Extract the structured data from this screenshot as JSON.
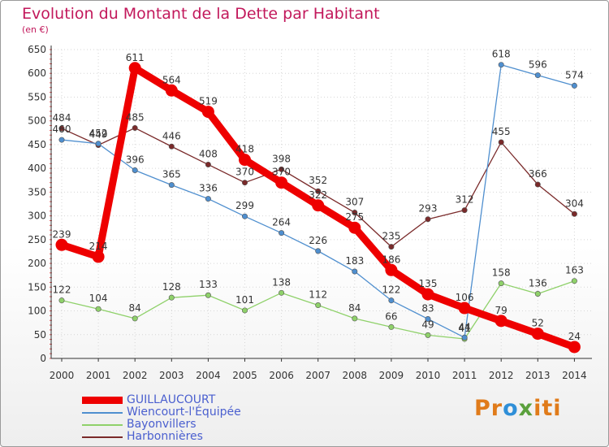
{
  "chart_data": {
    "type": "line",
    "title": "Evolution du Montant de la Dette par Habitant",
    "subtitle": "(en €)",
    "x": [
      "2000",
      "2001",
      "2002",
      "2003",
      "2004",
      "2005",
      "2006",
      "2007",
      "2008",
      "2009",
      "2010",
      "2011",
      "2012",
      "2013",
      "2014"
    ],
    "ylim": [
      0,
      650
    ],
    "yticks": [
      0,
      50,
      100,
      150,
      200,
      250,
      300,
      350,
      400,
      450,
      500,
      550,
      600,
      650
    ],
    "grid": true,
    "legend_position": "bottom-left",
    "series": [
      {
        "name": "GUILLAUCOURT",
        "color": "#ee0000",
        "values": [
          239,
          214,
          611,
          564,
          519,
          418,
          370,
          322,
          275,
          186,
          135,
          106,
          79,
          52,
          24
        ],
        "labels": [
          "239",
          "214",
          "611",
          "564",
          "519",
          "418",
          "370",
          "322",
          "275",
          "186",
          "135",
          "106",
          "79",
          "52",
          "24"
        ]
      },
      {
        "name": "Wiencourt-l'Équipée",
        "color": "#4f8fcf",
        "values": [
          460,
          452,
          396,
          365,
          336,
          299,
          264,
          226,
          183,
          122,
          83,
          44,
          618,
          596,
          574
        ],
        "labels": [
          "460",
          "452",
          "396",
          "365",
          "336",
          "299",
          "264",
          "226",
          "183",
          "122",
          "83",
          "44",
          "618",
          "596",
          "574"
        ]
      },
      {
        "name": "Bayonvillers",
        "color": "#8fd16a",
        "values": [
          122,
          104,
          84,
          128,
          133,
          101,
          138,
          112,
          84,
          66,
          49,
          41,
          158,
          136,
          163
        ],
        "labels": [
          "122",
          "104",
          "84",
          "128",
          "133",
          "101",
          "138",
          "112",
          "84",
          "66",
          "49",
          "41",
          "158",
          "136",
          "163"
        ]
      },
      {
        "name": "Harbonnières",
        "color": "#7a2a2a",
        "values": [
          484,
          449,
          485,
          446,
          408,
          370,
          398,
          352,
          307,
          235,
          293,
          312,
          455,
          366,
          304
        ],
        "labels": [
          "484",
          "449",
          "485",
          "446",
          "408",
          "370",
          "398",
          "352",
          "307",
          "235",
          "293",
          "312",
          "455",
          "366",
          "304"
        ]
      }
    ]
  },
  "logo_text": "Proxiti"
}
